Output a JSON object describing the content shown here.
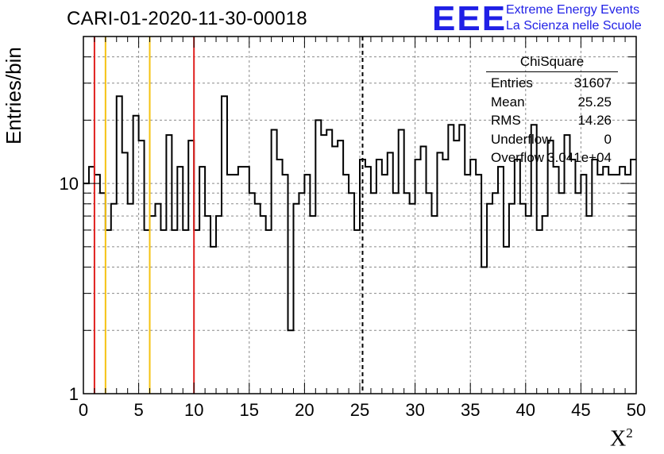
{
  "title": "CARI-01-2020-11-30-00018",
  "logo": {
    "mark": "EEE",
    "line1": "Extreme Energy Events",
    "line2": "La Scienza nelle Scuole",
    "color": "#1f1fe6"
  },
  "chart_data": {
    "type": "histogram",
    "xlabel": "X",
    "xlabel_superscript": "2",
    "ylabel": "Entries/bin",
    "xlim": [
      0,
      50
    ],
    "ylim": [
      1,
      50
    ],
    "log_y": true,
    "grid": true,
    "bin_width": 0.5,
    "x_ticks": [
      0,
      5,
      10,
      15,
      20,
      25,
      30,
      35,
      40,
      45,
      50
    ],
    "y_tick_labels": [
      "1",
      "10"
    ],
    "y_tick_values": [
      1,
      10
    ],
    "counts": [
      10,
      12,
      11,
      9,
      6,
      8,
      26,
      14,
      8,
      21,
      16,
      6,
      7,
      8,
      6,
      17,
      6,
      12,
      6,
      16,
      6,
      12,
      7,
      5,
      7,
      26,
      11,
      11,
      12,
      12,
      9,
      8,
      7,
      6,
      18,
      13,
      11,
      2,
      8,
      9,
      11,
      7,
      20,
      17,
      18,
      15,
      16,
      11,
      9,
      6,
      13,
      12,
      9,
      13,
      11,
      14,
      9,
      18,
      9,
      8,
      13,
      15,
      9,
      7,
      14,
      13,
      19,
      16,
      19,
      11,
      13,
      11,
      4,
      8,
      9,
      12,
      5,
      8,
      13,
      8,
      7,
      19,
      6,
      7,
      16,
      12,
      9,
      17,
      13,
      9,
      11,
      7,
      13,
      11,
      12,
      11,
      11,
      12,
      11,
      13
    ],
    "vertical_lines": [
      {
        "x": 1,
        "color": "#e0201f",
        "style": "solid"
      },
      {
        "x": 2,
        "color": "#f5c211",
        "style": "solid"
      },
      {
        "x": 6,
        "color": "#f5c211",
        "style": "solid"
      },
      {
        "x": 10,
        "color": "#e0201f",
        "style": "solid"
      },
      {
        "x": 25.25,
        "color": "#000000",
        "style": "dashed"
      }
    ],
    "stats_box": {
      "title": "ChiSquare",
      "rows": [
        {
          "key": "Entries",
          "value": "31607"
        },
        {
          "key": "Mean",
          "value": "25.25"
        },
        {
          "key": "RMS",
          "value": "14.26"
        },
        {
          "key": "Underflow",
          "value": "0"
        },
        {
          "key": "Overflow",
          "value": "3.041e+04"
        }
      ]
    }
  }
}
